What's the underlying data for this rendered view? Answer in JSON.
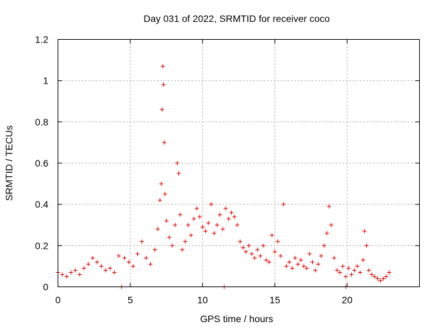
{
  "chart_data": {
    "type": "scatter",
    "title": "Day 031 of 2022, SRMTID for receiver coco",
    "xlabel": "GPS time / hours",
    "ylabel": "SRMTID / TECUs",
    "xlim": [
      0,
      25
    ],
    "ylim": [
      0,
      1.2
    ],
    "xticks": [
      0,
      5,
      10,
      15,
      20
    ],
    "xtick_labels": [
      "0",
      "5",
      "10",
      "15",
      "20"
    ],
    "yticks": [
      0,
      0.2,
      0.4,
      0.6,
      0.8,
      1.0,
      1.2
    ],
    "ytick_labels": [
      "0",
      "0.2",
      "0.4",
      "0.6",
      "0.8",
      "1",
      "1.2"
    ],
    "grid": true,
    "marker": "+",
    "color": "#e00000",
    "series": [
      {
        "name": "SRMTID",
        "x": [
          0.0,
          0.3,
          0.6,
          0.9,
          1.2,
          1.5,
          1.8,
          2.1,
          2.4,
          2.7,
          3.0,
          3.3,
          3.6,
          3.9,
          4.2,
          4.4,
          4.6,
          4.9,
          5.2,
          5.5,
          5.8,
          6.1,
          6.4,
          6.7,
          6.9,
          7.05,
          7.15,
          7.2,
          7.25,
          7.3,
          7.35,
          7.4,
          7.5,
          7.7,
          7.9,
          8.1,
          8.25,
          8.35,
          8.45,
          8.6,
          8.8,
          9.0,
          9.2,
          9.4,
          9.6,
          9.8,
          10.0,
          10.2,
          10.4,
          10.6,
          10.8,
          11.0,
          11.2,
          11.4,
          11.6,
          11.8,
          12.0,
          12.2,
          12.4,
          12.6,
          12.8,
          13.0,
          13.2,
          13.4,
          13.6,
          13.8,
          14.0,
          14.2,
          14.4,
          14.6,
          14.8,
          15.0,
          15.2,
          15.4,
          15.6,
          15.8,
          16.0,
          16.2,
          16.4,
          16.6,
          16.8,
          17.0,
          17.2,
          17.4,
          17.6,
          17.8,
          18.0,
          18.2,
          18.4,
          18.6,
          18.75,
          18.9,
          19.1,
          19.3,
          19.5,
          19.7,
          19.9,
          20.1,
          20.3,
          20.5,
          20.7,
          20.9,
          21.1,
          21.2,
          21.35,
          21.5,
          21.7,
          21.9,
          22.1,
          22.3,
          22.5,
          22.7,
          22.9,
          11.5,
          19.9
        ],
        "y": [
          0.07,
          0.06,
          0.05,
          0.07,
          0.08,
          0.06,
          0.09,
          0.11,
          0.14,
          0.12,
          0.1,
          0.08,
          0.09,
          0.07,
          0.15,
          0.0,
          0.14,
          0.12,
          0.1,
          0.16,
          0.22,
          0.14,
          0.11,
          0.18,
          0.28,
          0.42,
          0.5,
          0.86,
          1.07,
          0.98,
          0.7,
          0.45,
          0.32,
          0.24,
          0.2,
          0.3,
          0.6,
          0.55,
          0.35,
          0.18,
          0.22,
          0.3,
          0.25,
          0.33,
          0.38,
          0.34,
          0.29,
          0.27,
          0.31,
          0.4,
          0.26,
          0.3,
          0.35,
          0.28,
          0.38,
          0.33,
          0.36,
          0.34,
          0.3,
          0.22,
          0.19,
          0.17,
          0.2,
          0.16,
          0.14,
          0.18,
          0.15,
          0.2,
          0.13,
          0.12,
          0.25,
          0.17,
          0.22,
          0.15,
          0.4,
          0.1,
          0.12,
          0.09,
          0.14,
          0.11,
          0.13,
          0.1,
          0.09,
          0.16,
          0.12,
          0.08,
          0.11,
          0.15,
          0.2,
          0.26,
          0.39,
          0.3,
          0.14,
          0.08,
          0.07,
          0.1,
          0.05,
          0.09,
          0.06,
          0.08,
          0.1,
          0.07,
          0.13,
          0.27,
          0.2,
          0.08,
          0.06,
          0.05,
          0.04,
          0.03,
          0.04,
          0.05,
          0.07,
          0.0,
          0.0
        ]
      }
    ]
  }
}
